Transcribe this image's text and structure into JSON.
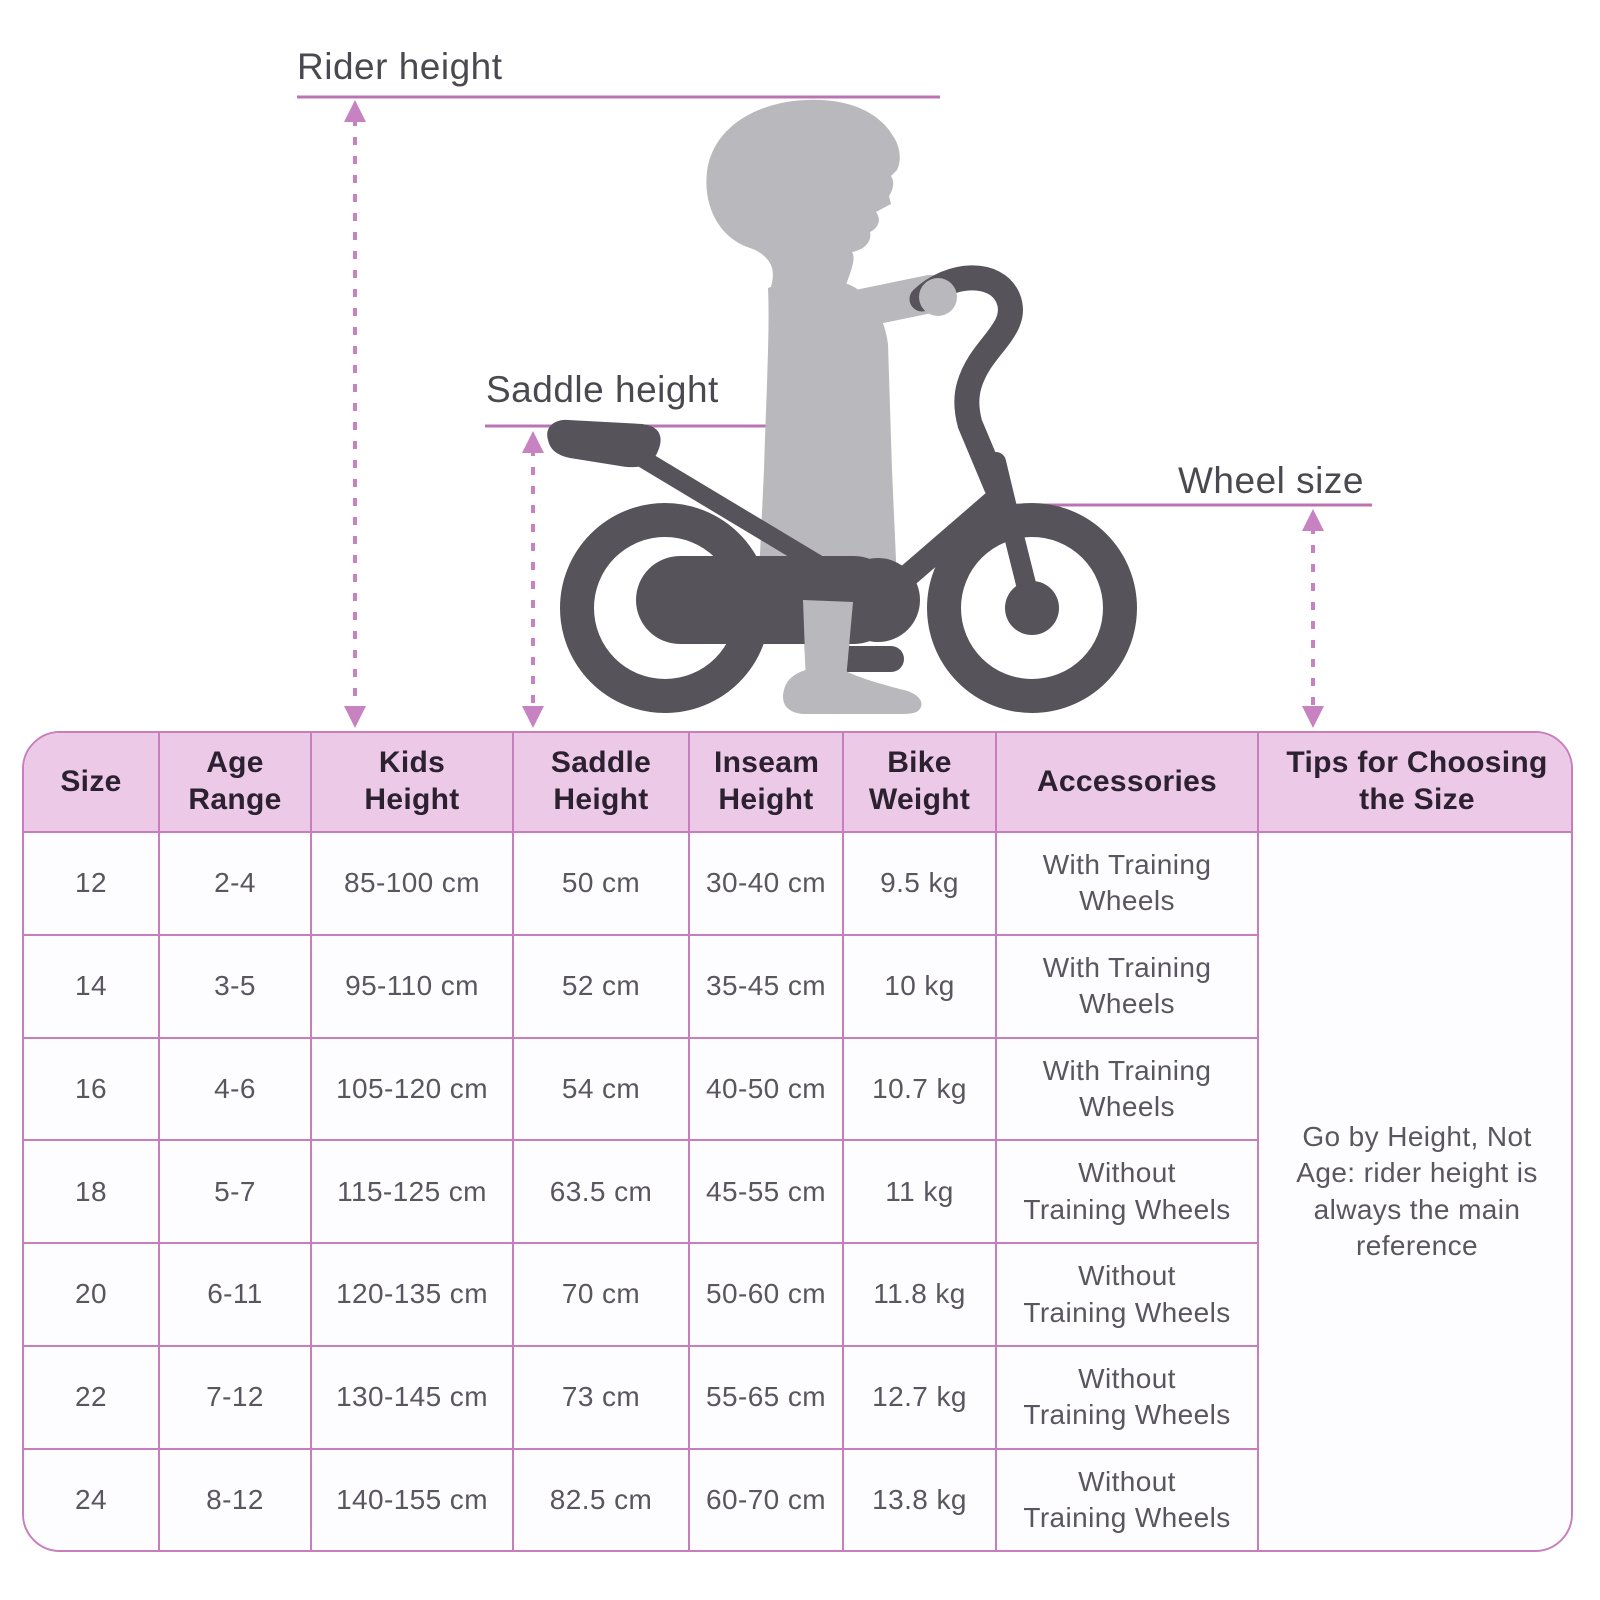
{
  "illustration": {
    "rider_height_label": "Rider height",
    "saddle_height_label": "Saddle height",
    "wheel_size_label": "Wheel size"
  },
  "table": {
    "headers": [
      "Size",
      "Age Range",
      "Kids Height",
      "Saddle Height",
      "Inseam Height",
      "Bike Weight",
      "Accessories",
      "Tips for Choosing the Size"
    ],
    "rows": [
      {
        "size": "12",
        "age_range": "2-4",
        "kids_height": "85-100 cm",
        "saddle_height": "50 cm",
        "inseam_height": "30-40 cm",
        "bike_weight": "9.5 kg",
        "accessories": "With Training Wheels"
      },
      {
        "size": "14",
        "age_range": "3-5",
        "kids_height": "95-110 cm",
        "saddle_height": "52 cm",
        "inseam_height": "35-45 cm",
        "bike_weight": "10 kg",
        "accessories": "With Training Wheels"
      },
      {
        "size": "16",
        "age_range": "4-6",
        "kids_height": "105-120 cm",
        "saddle_height": "54 cm",
        "inseam_height": "40-50 cm",
        "bike_weight": "10.7 kg",
        "accessories": "With Training Wheels"
      },
      {
        "size": "18",
        "age_range": "5-7",
        "kids_height": "115-125 cm",
        "saddle_height": "63.5 cm",
        "inseam_height": "45-55 cm",
        "bike_weight": "11 kg",
        "accessories": "Without Training Wheels"
      },
      {
        "size": "20",
        "age_range": "6-11",
        "kids_height": "120-135 cm",
        "saddle_height": "70 cm",
        "inseam_height": "50-60 cm",
        "bike_weight": "11.8 kg",
        "accessories": "Without Training Wheels"
      },
      {
        "size": "22",
        "age_range": "7-12",
        "kids_height": "130-145 cm",
        "saddle_height": "73 cm",
        "inseam_height": "55-65 cm",
        "bike_weight": "12.7 kg",
        "accessories": "Without Training Wheels"
      },
      {
        "size": "24",
        "age_range": "8-12",
        "kids_height": "140-155 cm",
        "saddle_height": "82.5 cm",
        "inseam_height": "60-70 cm",
        "bike_weight": "13.8 kg",
        "accessories": "Without Training Wheels"
      }
    ],
    "tips_note": "Go by Height, Not Age: rider height is always the main reference"
  },
  "colors": {
    "header_bg": "#ecc9e6",
    "table_border": "#c67fbc",
    "measure_line": "#bb74b2",
    "dotted_arrow": "#c783c1",
    "child_fill": "#b9b8bc",
    "bike_fill": "#57535a",
    "label_color": "#4b4950",
    "header_text": "#2b2130",
    "body_text": "#5a5660"
  }
}
